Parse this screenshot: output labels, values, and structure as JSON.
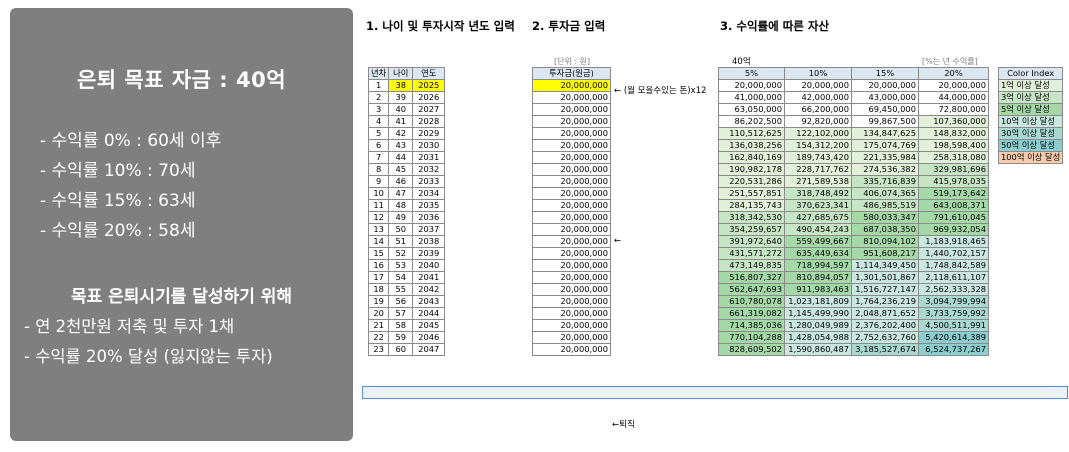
{
  "panel": {
    "title": "은퇴 목표 자금 : 40억",
    "lines": [
      "- 수익률   0% : 60세 이후",
      "- 수익률 10% : 70세",
      "- 수익률 15% : 63세",
      "- 수익률 20% : 58세"
    ],
    "subtitle": "목표 은퇴시기를 달성하기 위해",
    "lines2": [
      "- 연 2천만원 저축 및 투자 1채",
      "- 수익률 20% 달성 (잃지않는 투자)"
    ]
  },
  "sheet": {
    "section1": "1. 나이 및 투자시작 년도 입력",
    "section2": "2. 투자금 입력",
    "section3": "3. 수익률에 따른 자산",
    "unit_note": "[단위 : 원]",
    "goal_label": "40억",
    "rate_note": "[%는 년 수익률]",
    "monthly_note": "← (월 모을수있는 돈)x12",
    "arrow_note": "←",
    "retire_note": "←퇴직",
    "headers": {
      "year_no": "년차",
      "age": "나이",
      "year": "연도",
      "invest": "투자금(원금)",
      "r5": "5%",
      "r10": "10%",
      "r15": "15%",
      "r20": "20%"
    },
    "rows": [
      [
        "1",
        "38",
        "2025",
        "20,000,000",
        "20,000,000",
        "20,000,000",
        "20,000,000",
        "20,000,000"
      ],
      [
        "2",
        "39",
        "2026",
        "20,000,000",
        "41,000,000",
        "42,000,000",
        "43,000,000",
        "44,000,000"
      ],
      [
        "3",
        "40",
        "2027",
        "20,000,000",
        "63,050,000",
        "66,200,000",
        "69,450,000",
        "72,800,000"
      ],
      [
        "4",
        "41",
        "2028",
        "20,000,000",
        "86,202,500",
        "92,820,000",
        "99,867,500",
        "107,360,000"
      ],
      [
        "5",
        "42",
        "2029",
        "20,000,000",
        "110,512,625",
        "122,102,000",
        "134,847,625",
        "148,832,000"
      ],
      [
        "6",
        "43",
        "2030",
        "20,000,000",
        "136,038,256",
        "154,312,200",
        "175,074,769",
        "198,598,400"
      ],
      [
        "7",
        "44",
        "2031",
        "20,000,000",
        "162,840,169",
        "189,743,420",
        "221,335,984",
        "258,318,080"
      ],
      [
        "8",
        "45",
        "2032",
        "20,000,000",
        "190,982,178",
        "228,717,762",
        "274,536,382",
        "329,981,696"
      ],
      [
        "9",
        "46",
        "2033",
        "20,000,000",
        "220,531,286",
        "271,589,538",
        "335,716,839",
        "415,978,035"
      ],
      [
        "10",
        "47",
        "2034",
        "20,000,000",
        "251,557,851",
        "318,748,492",
        "406,074,365",
        "519,173,642"
      ],
      [
        "11",
        "48",
        "2035",
        "20,000,000",
        "284,135,743",
        "370,623,341",
        "486,985,519",
        "643,008,371"
      ],
      [
        "12",
        "49",
        "2036",
        "20,000,000",
        "318,342,530",
        "427,685,675",
        "580,033,347",
        "791,610,045"
      ],
      [
        "13",
        "50",
        "2037",
        "20,000,000",
        "354,259,657",
        "490,454,243",
        "687,038,350",
        "969,932,054"
      ],
      [
        "14",
        "51",
        "2038",
        "20,000,000",
        "391,972,640",
        "559,499,667",
        "810,094,102",
        "1,183,918,465"
      ],
      [
        "15",
        "52",
        "2039",
        "20,000,000",
        "431,571,272",
        "635,449,634",
        "951,608,217",
        "1,440,702,157"
      ],
      [
        "16",
        "53",
        "2040",
        "20,000,000",
        "473,149,835",
        "718,994,597",
        "1,114,349,450",
        "1,748,842,589"
      ],
      [
        "17",
        "54",
        "2041",
        "20,000,000",
        "516,807,327",
        "810,894,057",
        "1,301,501,867",
        "2,118,611,107"
      ],
      [
        "18",
        "55",
        "2042",
        "20,000,000",
        "562,647,693",
        "911,983,463",
        "1,516,727,147",
        "2,562,333,328"
      ],
      [
        "19",
        "56",
        "2043",
        "20,000,000",
        "610,780,078",
        "1,023,181,809",
        "1,764,236,219",
        "3,094,799,994"
      ],
      [
        "20",
        "57",
        "2044",
        "20,000,000",
        "661,319,082",
        "1,145,499,990",
        "2,048,871,652",
        "3,733,759,992"
      ],
      [
        "21",
        "58",
        "2045",
        "20,000,000",
        "714,385,036",
        "1,280,049,989",
        "2,376,202,400",
        "4,500,511,991"
      ],
      [
        "22",
        "59",
        "2046",
        "20,000,000",
        "770,104,288",
        "1,428,054,988",
        "2,752,632,760",
        "5,420,614,389"
      ],
      [
        "23",
        "60",
        "2047",
        "20,000,000",
        "828,609,502",
        "1,590,860,487",
        "3,185,527,674",
        "6,524,737,267"
      ]
    ],
    "color_index": {
      "header": "Color Index",
      "items": [
        {
          "label": "1억 이상 달성",
          "color": "#e2f0d9"
        },
        {
          "label": "3억 이상 달성",
          "color": "#c6e5c4"
        },
        {
          "label": "5억 이상 달성",
          "color": "#a5d8a7"
        },
        {
          "label": "10억 이상 달성",
          "color": "#c9e7df"
        },
        {
          "label": "30억 이상 달성",
          "color": "#a9d8d0"
        },
        {
          "label": "50억 이상 달성",
          "color": "#8ccdd0"
        },
        {
          "label": "100억 이상 달성",
          "color": "#f8cbad"
        }
      ]
    }
  }
}
